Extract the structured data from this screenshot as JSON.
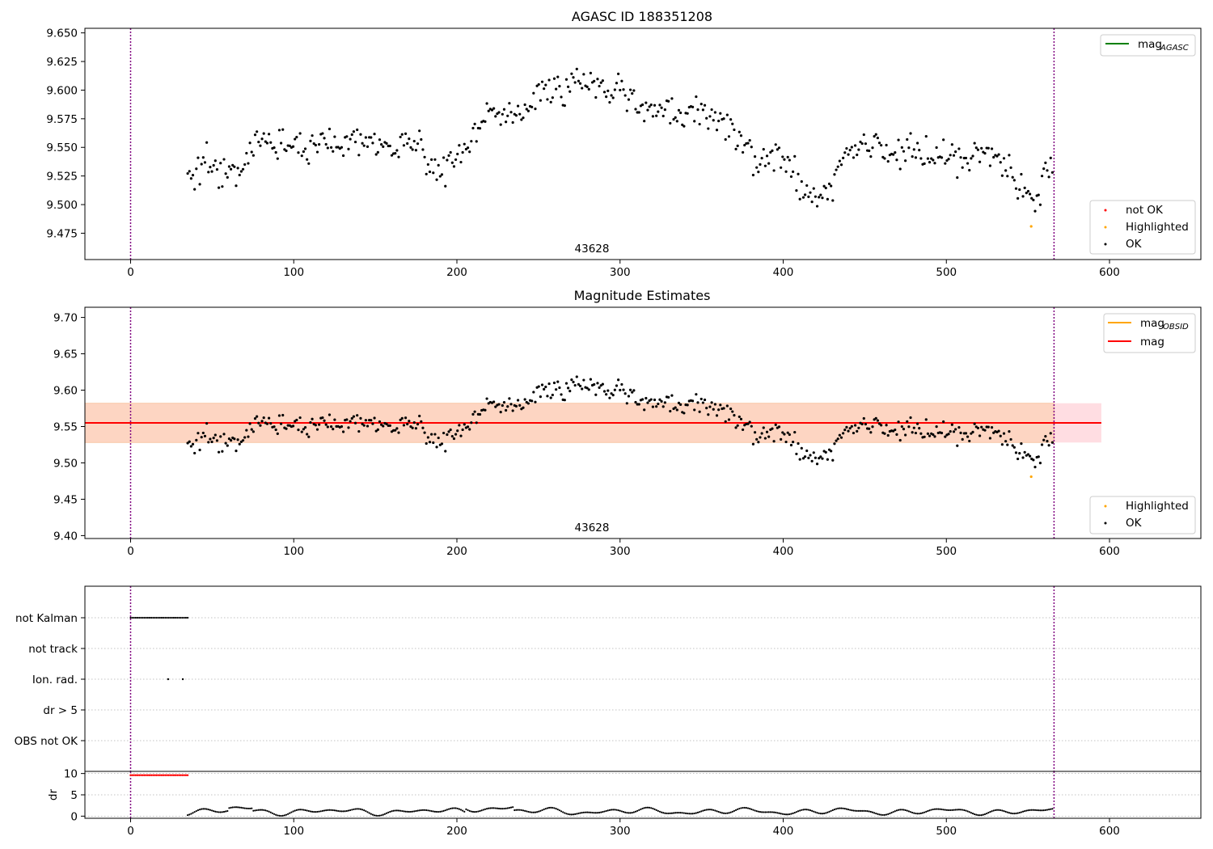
{
  "colors": {
    "ok": "#000000",
    "not_ok": "#ff0000",
    "highlighted": "#ffa500",
    "mag_agasc": "#008000",
    "mag_obsid": "#ffa500",
    "mag": "#ff0000",
    "band_pink": "#ffdde2",
    "band_orange": "#fdd5c2",
    "obs_boundary": "#800080",
    "grid": "#b0b0b0"
  },
  "chart_data": [
    {
      "type": "scatter",
      "title": "AGASC ID 188351208",
      "annotation": "43628",
      "xlim": [
        -28,
        656
      ],
      "ylim": [
        9.452,
        9.654
      ],
      "xticks": [
        "0",
        "100",
        "200",
        "300",
        "400",
        "500",
        "600"
      ],
      "yticks": [
        "9.475",
        "9.500",
        "9.525",
        "9.550",
        "9.575",
        "9.600",
        "9.625",
        "9.650"
      ],
      "vlines": [
        0,
        566
      ],
      "legend_lines": [
        {
          "label": "mag",
          "sub": "AGASC",
          "color": "#008000"
        }
      ],
      "legend_markers": [
        {
          "label": "not OK",
          "color": "#ff0000"
        },
        {
          "label": "Highlighted",
          "color": "#ffa500"
        },
        {
          "label": "OK",
          "color": "#000000"
        }
      ],
      "series": [
        {
          "name": "OK",
          "values": "magnitude series (x: 35-566)"
        },
        {
          "name": "Highlighted",
          "points": [
            [
              552,
              9.481
            ]
          ]
        }
      ]
    },
    {
      "type": "scatter",
      "title": "Magnitude Estimates",
      "annotation": "43628",
      "xlim": [
        -28,
        656
      ],
      "ylim": [
        9.396,
        9.714
      ],
      "xticks": [
        "0",
        "100",
        "200",
        "300",
        "400",
        "500",
        "600"
      ],
      "yticks": [
        "9.40",
        "9.45",
        "9.50",
        "9.55",
        "9.60",
        "9.65",
        "9.70"
      ],
      "vlines": [
        0,
        566
      ],
      "mag": 9.555,
      "mag_band": [
        9.528,
        9.582
      ],
      "mag_obsid_band": [
        9.528,
        9.582
      ],
      "band_xrange": [
        -28,
        595
      ],
      "legend_lines": [
        {
          "label": "mag",
          "sub": "OBSID",
          "color": "#ffa500"
        },
        {
          "label": "mag",
          "sub": "",
          "color": "#ff0000"
        }
      ],
      "legend_markers": [
        {
          "label": "Highlighted",
          "color": "#ffa500"
        },
        {
          "label": "OK",
          "color": "#000000"
        }
      ],
      "series": [
        {
          "name": "OK",
          "values": "magnitude series (x: 35-566)"
        },
        {
          "name": "Highlighted",
          "points": [
            [
              552,
              9.481
            ]
          ]
        }
      ]
    },
    {
      "type": "scatter",
      "xlim": [
        -28,
        656
      ],
      "flags": [
        "not Kalman",
        "not track",
        "Ion. rad.",
        "dr > 5",
        "OBS not OK"
      ],
      "flag_points": {
        "not Kalman": {
          "range": [
            0,
            35
          ]
        },
        "not track": {
          "range": []
        },
        "Ion. rad.": {
          "points": [
            23,
            32
          ]
        },
        "dr > 5": {
          "range": []
        },
        "OBS not OK": {
          "range": []
        }
      },
      "vlines": [
        0,
        566
      ]
    },
    {
      "type": "scatter",
      "ylabel": "dr",
      "xlim": [
        -28,
        656
      ],
      "ylim": [
        -0.5,
        10.5
      ],
      "yticks": [
        "0",
        "5",
        "10"
      ],
      "xticks": [
        "0",
        "100",
        "200",
        "300",
        "400",
        "500",
        "600"
      ],
      "vlines": [
        0,
        566
      ],
      "series": [
        {
          "name": "dr",
          "range": [
            35,
            566
          ]
        },
        {
          "name": "dr not OK",
          "range": [
            0,
            35
          ],
          "value": 9.6
        }
      ]
    }
  ]
}
